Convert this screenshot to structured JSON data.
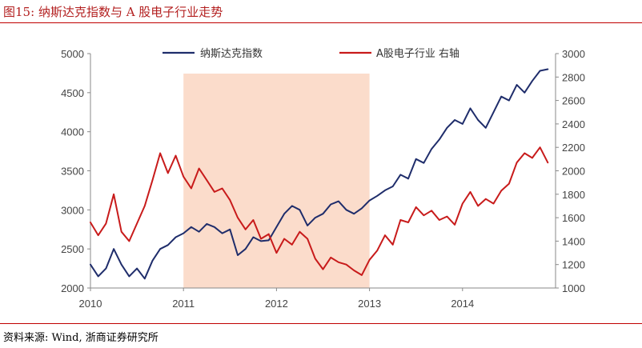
{
  "header": {
    "figure_label": "图15:",
    "figure_title": "纳斯达克指数与 A 股电子行业走势"
  },
  "footer": {
    "source": "资料来源: Wind, 浙商证券研究所"
  },
  "colors": {
    "navy": "#1f2d6b",
    "red": "#c81b1b",
    "highlight": "#fbdccb",
    "rule": "#c00000"
  },
  "chart_data": {
    "type": "line",
    "x_ticks": [
      "2010",
      "2011",
      "2012",
      "2013",
      "2014"
    ],
    "xlim": [
      "2010-01",
      "2015-01"
    ],
    "y_left_ticks": [
      "2000",
      "2500",
      "3000",
      "3500",
      "4000",
      "4500",
      "5000"
    ],
    "y_left_lim": [
      2000,
      5000
    ],
    "y_right_ticks": [
      "1000",
      "1200",
      "1400",
      "1600",
      "1800",
      "2000",
      "2200",
      "2400",
      "2600",
      "2800",
      "3000"
    ],
    "y_right_lim": [
      1000,
      3000
    ],
    "shaded_region": {
      "x": [
        "2011-01",
        "2013-01"
      ]
    },
    "legend_position": "top",
    "series": [
      {
        "name": "纳斯达克指数",
        "axis": "left",
        "color": "#1f2d6b",
        "x": [
          "2010-01",
          "2010-02",
          "2010-03",
          "2010-04",
          "2010-05",
          "2010-06",
          "2010-07",
          "2010-08",
          "2010-09",
          "2010-10",
          "2010-11",
          "2010-12",
          "2011-01",
          "2011-02",
          "2011-03",
          "2011-04",
          "2011-05",
          "2011-06",
          "2011-07",
          "2011-08",
          "2011-09",
          "2011-10",
          "2011-11",
          "2011-12",
          "2012-01",
          "2012-02",
          "2012-03",
          "2012-04",
          "2012-05",
          "2012-06",
          "2012-07",
          "2012-08",
          "2012-09",
          "2012-10",
          "2012-11",
          "2012-12",
          "2013-01",
          "2013-02",
          "2013-03",
          "2013-04",
          "2013-05",
          "2013-06",
          "2013-07",
          "2013-08",
          "2013-09",
          "2013-10",
          "2013-11",
          "2013-12",
          "2014-01",
          "2014-02",
          "2014-03",
          "2014-04",
          "2014-05",
          "2014-06",
          "2014-07",
          "2014-08",
          "2014-09",
          "2014-10",
          "2014-11",
          "2014-12"
        ],
        "values": [
          2300,
          2150,
          2250,
          2500,
          2300,
          2150,
          2250,
          2120,
          2350,
          2500,
          2550,
          2650,
          2700,
          2780,
          2720,
          2820,
          2780,
          2700,
          2750,
          2420,
          2500,
          2650,
          2600,
          2610,
          2780,
          2950,
          3050,
          3000,
          2800,
          2900,
          2950,
          3070,
          3110,
          3000,
          2950,
          3020,
          3120,
          3180,
          3250,
          3300,
          3450,
          3400,
          3650,
          3600,
          3780,
          3900,
          4050,
          4150,
          4100,
          4300,
          4150,
          4050,
          4250,
          4450,
          4400,
          4600,
          4500,
          4650,
          4780,
          4800
        ]
      },
      {
        "name": "A股电子行业 右轴",
        "axis": "right",
        "color": "#c81b1b",
        "x": [
          "2010-01",
          "2010-02",
          "2010-03",
          "2010-04",
          "2010-05",
          "2010-06",
          "2010-07",
          "2010-08",
          "2010-09",
          "2010-10",
          "2010-11",
          "2010-12",
          "2011-01",
          "2011-02",
          "2011-03",
          "2011-04",
          "2011-05",
          "2011-06",
          "2011-07",
          "2011-08",
          "2011-09",
          "2011-10",
          "2011-11",
          "2011-12",
          "2012-01",
          "2012-02",
          "2012-03",
          "2012-04",
          "2012-05",
          "2012-06",
          "2012-07",
          "2012-08",
          "2012-09",
          "2012-10",
          "2012-11",
          "2012-12",
          "2013-01",
          "2013-02",
          "2013-03",
          "2013-04",
          "2013-05",
          "2013-06",
          "2013-07",
          "2013-08",
          "2013-09",
          "2013-10",
          "2013-11",
          "2013-12",
          "2014-01",
          "2014-02",
          "2014-03",
          "2014-04",
          "2014-05",
          "2014-06",
          "2014-07",
          "2014-08",
          "2014-09",
          "2014-10",
          "2014-11",
          "2014-12"
        ],
        "values": [
          1560,
          1450,
          1550,
          1800,
          1480,
          1400,
          1550,
          1700,
          1920,
          2150,
          1980,
          2130,
          1950,
          1850,
          2020,
          1920,
          1820,
          1850,
          1750,
          1600,
          1500,
          1580,
          1420,
          1460,
          1300,
          1420,
          1370,
          1480,
          1420,
          1250,
          1160,
          1260,
          1220,
          1200,
          1150,
          1110,
          1240,
          1320,
          1450,
          1370,
          1580,
          1560,
          1690,
          1620,
          1660,
          1580,
          1610,
          1540,
          1720,
          1820,
          1700,
          1760,
          1720,
          1830,
          1890,
          2070,
          2150,
          2110,
          2200,
          2070
        ]
      }
    ]
  }
}
